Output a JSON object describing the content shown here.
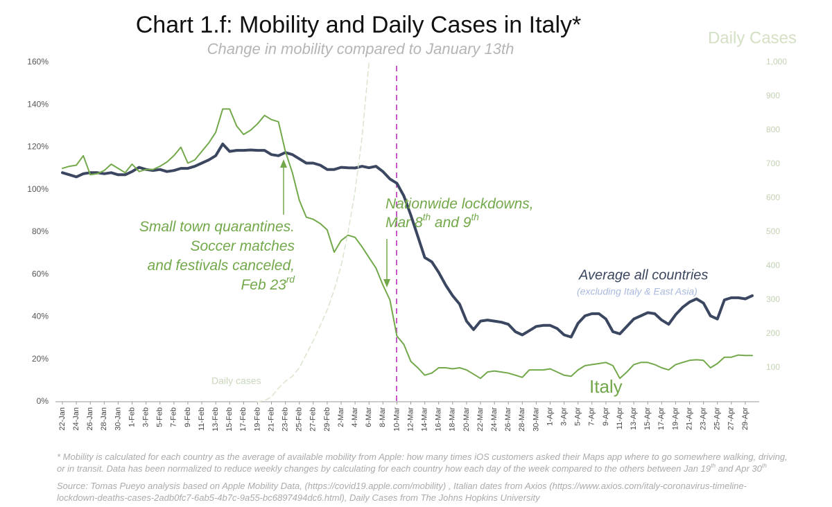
{
  "chart_data": {
    "type": "line",
    "title": "Chart 1.f: Mobility and Daily Cases in Italy*",
    "subtitle": "Change in mobility compared to January 13th",
    "y2_label": "Daily Cases",
    "categories": [
      "22-Jan",
      null,
      "24-Jan",
      null,
      "26-Jan",
      null,
      "28-Jan",
      null,
      "30-Jan",
      null,
      "1-Feb",
      null,
      "3-Feb",
      null,
      "5-Feb",
      null,
      "7-Feb",
      null,
      "9-Feb",
      null,
      "11-Feb",
      null,
      "13-Feb",
      null,
      "15-Feb",
      null,
      "17-Feb",
      null,
      "19-Feb",
      null,
      "21-Feb",
      null,
      "23-Feb",
      null,
      "25-Feb",
      null,
      "27-Feb",
      null,
      "29-Feb",
      null,
      "2-Mar",
      null,
      "4-Mar",
      null,
      "6-Mar",
      null,
      "8-Mar",
      null,
      "10-Mar",
      null,
      "12-Mar",
      null,
      "14-Mar",
      null,
      "16-Mar",
      null,
      "18-Mar",
      null,
      "20-Mar",
      null,
      "22-Mar",
      null,
      "24-Mar",
      null,
      "26-Mar",
      null,
      "28-Mar",
      null,
      "30-Mar",
      null,
      "1-Apr",
      null,
      "3-Apr",
      null,
      "5-Apr",
      null,
      "7-Apr",
      null,
      "9-Apr",
      null,
      "11-Apr",
      null,
      "13-Apr",
      null,
      "15-Apr",
      null,
      "17-Apr",
      null,
      "19-Apr",
      null,
      "21-Apr",
      null,
      "23-Apr",
      null,
      "25-Apr",
      null,
      "27-Apr",
      null,
      "29-Apr",
      null
    ],
    "series": [
      {
        "name": "Average all countries",
        "note": "(excluding Italy & East Asia)",
        "color": "#3b4660",
        "width": 4,
        "values": [
          108,
          107,
          106,
          107.5,
          108,
          108,
          107.5,
          108,
          107,
          107,
          108.5,
          110.5,
          109.5,
          109,
          109.5,
          108.5,
          109,
          110,
          110,
          111,
          112.5,
          114,
          116,
          121.5,
          118,
          118.5,
          118.5,
          118.7,
          118.5,
          118.5,
          116.5,
          116,
          117.5,
          116.5,
          114.5,
          112.5,
          112.5,
          111.5,
          109.5,
          109.5,
          110.5,
          110.3,
          110.2,
          111,
          110.3,
          111,
          108.5,
          105,
          103,
          97,
          88,
          78,
          68,
          66,
          61,
          55,
          50,
          46,
          38,
          34,
          38,
          38.5,
          38,
          37.5,
          36.5,
          33,
          31.5,
          33.5,
          35.5,
          36,
          36,
          34.5,
          31.5,
          30.5,
          37,
          40.5,
          41.5,
          41.5,
          39,
          33,
          32,
          35.5,
          39,
          40.5,
          42,
          41.5,
          38.5,
          36.5,
          41,
          44.5,
          47,
          48.5,
          46.5,
          40.5,
          39,
          48,
          49,
          49,
          48.5,
          50
        ]
      },
      {
        "name": "Italy",
        "color": "#72a84a",
        "width": 2,
        "values": [
          110,
          111,
          111.5,
          116,
          107,
          107.5,
          109,
          112,
          110,
          108,
          112,
          108.5,
          109.5,
          109.5,
          111,
          113,
          116,
          120,
          112.5,
          114,
          118,
          122,
          127,
          138,
          138,
          130,
          126,
          128,
          131,
          135,
          133,
          132,
          118,
          108,
          95,
          87,
          86,
          84,
          81,
          70.5,
          76,
          78.5,
          77.5,
          73,
          68,
          63,
          55,
          48,
          31,
          27,
          19,
          16,
          12.5,
          13.5,
          16,
          16,
          15.5,
          16,
          15,
          13,
          11,
          14,
          14.5,
          14,
          13.5,
          12.5,
          11.5,
          15,
          15,
          15,
          15.5,
          14,
          12.5,
          12,
          15,
          17,
          17.5,
          18,
          18.5,
          17,
          11,
          14,
          17.5,
          18.5,
          18.5,
          17.5,
          16,
          15,
          17.5,
          18.5,
          19.5,
          19.8,
          19.5,
          16,
          18,
          21,
          21,
          22,
          21.8,
          21.8
        ]
      },
      {
        "name": "Daily cases",
        "color": "#d9e4cd",
        "width": 1.5,
        "dashed": true,
        "axis": "y2",
        "values": [
          null,
          null,
          null,
          null,
          null,
          null,
          null,
          null,
          null,
          null,
          null,
          null,
          null,
          null,
          null,
          null,
          null,
          null,
          null,
          null,
          null,
          null,
          null,
          null,
          null,
          null,
          null,
          null,
          0,
          3,
          14,
          40,
          60,
          75,
          100,
          140,
          180,
          225,
          270,
          330,
          400,
          500,
          620,
          780,
          1000,
          null,
          null,
          null,
          null,
          null,
          null,
          null,
          null,
          null,
          null,
          null,
          null,
          null,
          null,
          null,
          null,
          null,
          null,
          null,
          null,
          null,
          null,
          null,
          null,
          null,
          null,
          null,
          null,
          null,
          null,
          null,
          null,
          null,
          null,
          null,
          null,
          null,
          null,
          null,
          null,
          null,
          null,
          null,
          null,
          null,
          null,
          null,
          null,
          null,
          null,
          null,
          null,
          null,
          null,
          null
        ]
      }
    ],
    "ylim": [
      0,
      160
    ],
    "yticks": [
      {
        "value": 0,
        "label": "0%"
      },
      {
        "value": 20,
        "label": "20%"
      },
      {
        "value": 40,
        "label": "40%"
      },
      {
        "value": 60,
        "label": "60%"
      },
      {
        "value": 80,
        "label": "80%"
      },
      {
        "value": 100,
        "label": "100%"
      },
      {
        "value": 120,
        "label": "120%"
      },
      {
        "value": 140,
        "label": "140%"
      },
      {
        "value": 160,
        "label": "160%"
      }
    ],
    "y2lim": [
      0,
      1000
    ],
    "y2ticks": [
      100,
      200,
      300,
      400,
      500,
      600,
      700,
      800,
      900,
      {
        "value": 1000,
        "label": "1,000"
      }
    ],
    "grid": false,
    "annotations": [
      {
        "color": "#72a84a",
        "lines": [
          [
            "Small town quarantines."
          ],
          [
            "Soccer matches"
          ],
          [
            "and festivals canceled,"
          ],
          [
            "Feb 23",
            {
              "sup": "rd"
            }
          ]
        ]
      },
      {
        "color": "#72a84a",
        "lines": [
          [
            "Nationwide lockdowns,"
          ],
          [
            "Mar 8",
            {
              "sup": "th"
            },
            " and 9",
            {
              "sup": "th"
            }
          ]
        ]
      }
    ],
    "footnote": [
      [
        "* Mobility is calculated for each country as the average of available mobility from Apple: how many times iOS customers asked their Maps app where to go somewhere walking, driving,"
      ],
      [
        "or in transit. Data has been normalized to reduce weekly changes by calculating for each country how each day of the week compared to the others between Jan 19",
        {
          "sup": "th"
        },
        " and Apr 30",
        {
          "sup": "th"
        }
      ]
    ],
    "source": [
      [
        "Source: Tomas Pueyo analysis based on Apple Mobility Data, (https://covid19.apple.com/mobility) , Italian dates from Axios (https://www.axios.com/italy-coronavirus-timeline-"
      ],
      [
        "lockdown-deaths-cases-2adb0fc7-6ab5-4b7c-9a55-bc6897494dc6.html), Daily Cases from The Johns Hopkins University"
      ]
    ]
  }
}
